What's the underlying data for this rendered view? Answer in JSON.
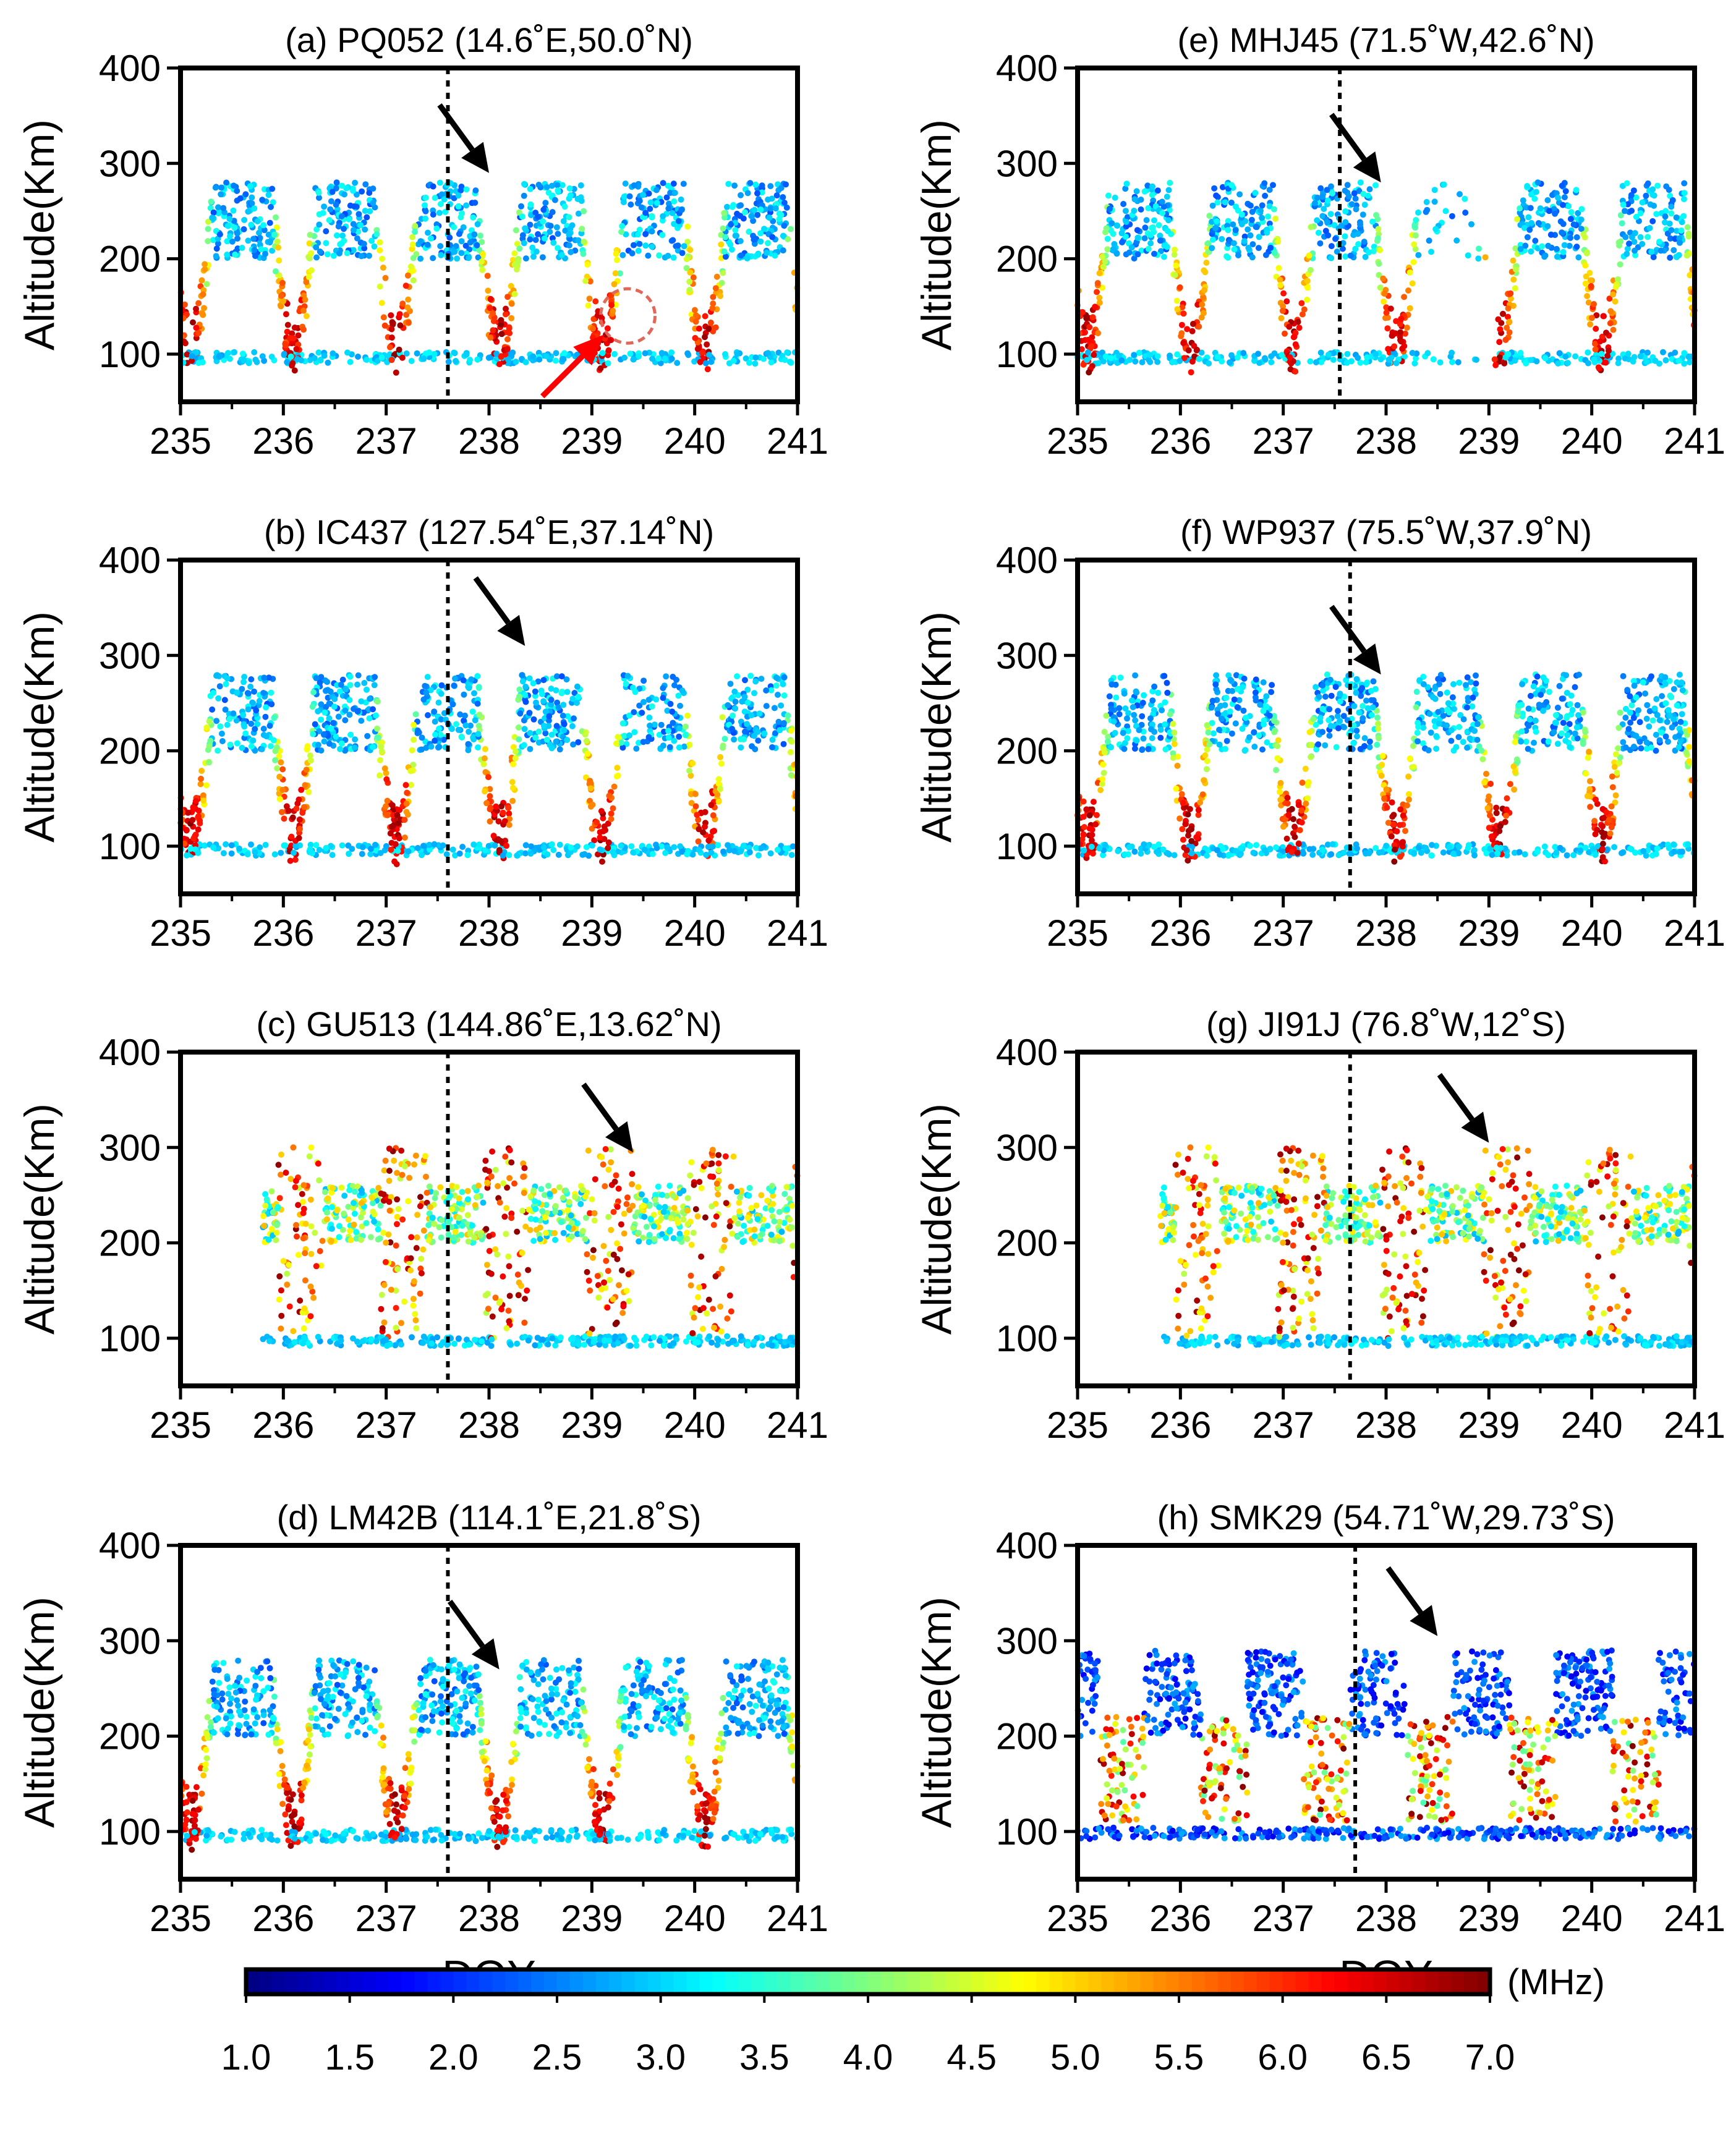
{
  "figure": {
    "xlabel": "DOY",
    "ylabel": "Altitude(Km)",
    "colorbar": {
      "unit": "(MHz)",
      "min": 1.0,
      "max": 7.0,
      "ticks": [
        "1.0",
        "1.5",
        "2.0",
        "2.5",
        "3.0",
        "3.5",
        "4.0",
        "4.5",
        "5.0",
        "5.5",
        "6.0",
        "6.5",
        "7.0"
      ]
    }
  },
  "chart_data": [
    {
      "type": "scatter",
      "panel": "a",
      "title": "(a) PQ052 (14.6˚E,50.0˚N)",
      "xlim": [
        235,
        241
      ],
      "ylim": [
        50,
        400
      ],
      "xticks": [
        "235",
        "236",
        "237",
        "238",
        "239",
        "240",
        "241"
      ],
      "yticks": [
        "100",
        "200",
        "300",
        "400"
      ],
      "ylabel": "Altitude(Km)",
      "event_doy": 237.6,
      "arrow": {
        "doy": 238.0,
        "alt": 290,
        "color": "#000000"
      },
      "extra_arrow": {
        "doy": 239.3,
        "alt": 140,
        "color": "#ff0000"
      },
      "circle": {
        "doy": 239.35,
        "alt": 140
      },
      "variant": "day-night",
      "day_gap": []
    },
    {
      "type": "scatter",
      "panel": "b",
      "title": "(b) IC437 (127.54˚E,37.14˚N)",
      "xlim": [
        235,
        241
      ],
      "ylim": [
        50,
        400
      ],
      "xticks": [
        "235",
        "236",
        "237",
        "238",
        "239",
        "240",
        "241"
      ],
      "yticks": [
        "100",
        "200",
        "300",
        "400"
      ],
      "ylabel": "Altitude(Km)",
      "event_doy": 237.6,
      "arrow": {
        "doy": 238.35,
        "alt": 310,
        "color": "#000000"
      },
      "variant": "day-night",
      "day_gap": []
    },
    {
      "type": "scatter",
      "panel": "c",
      "title": "(c) GU513 (144.86˚E,13.62˚N)",
      "xlim": [
        235,
        241
      ],
      "ylim": [
        50,
        400
      ],
      "xticks": [
        "235",
        "236",
        "237",
        "238",
        "239",
        "240",
        "241"
      ],
      "yticks": [
        "100",
        "200",
        "300",
        "400"
      ],
      "ylabel": "Altitude(Km)",
      "event_doy": 237.6,
      "arrow": {
        "doy": 239.4,
        "alt": 295,
        "color": "#000000"
      },
      "variant": "low-lat",
      "day_gap": []
    },
    {
      "type": "scatter",
      "panel": "d",
      "title": "(d) LM42B (114.1˚E,21.8˚S)",
      "xlim": [
        235,
        241
      ],
      "ylim": [
        50,
        400
      ],
      "xticks": [
        "235",
        "236",
        "237",
        "238",
        "239",
        "240",
        "241"
      ],
      "yticks": [
        "100",
        "200",
        "300",
        "400"
      ],
      "ylabel": "Altitude(Km)",
      "xlabel": "DOY",
      "event_doy": 237.6,
      "arrow": {
        "doy": 238.1,
        "alt": 270,
        "color": "#000000"
      },
      "variant": "day-night",
      "day_gap": []
    },
    {
      "type": "scatter",
      "panel": "e",
      "title": "(e) MHJ45 (71.5˚W,42.6˚N)",
      "xlim": [
        235,
        241
      ],
      "ylim": [
        50,
        400
      ],
      "xticks": [
        "235",
        "236",
        "237",
        "238",
        "239",
        "240",
        "241"
      ],
      "yticks": [
        "100",
        "200",
        "300",
        "400"
      ],
      "ylabel": "Altitude(Km)",
      "event_doy": 237.55,
      "arrow": {
        "doy": 237.95,
        "alt": 280,
        "color": "#000000"
      },
      "variant": "day-night",
      "day_gap": [
        238.3,
        239.1
      ]
    },
    {
      "type": "scatter",
      "panel": "f",
      "title": "(f) WP937 (75.5˚W,37.9˚N)",
      "xlim": [
        235,
        241
      ],
      "ylim": [
        50,
        400
      ],
      "xticks": [
        "235",
        "236",
        "237",
        "238",
        "239",
        "240",
        "241"
      ],
      "yticks": [
        "100",
        "200",
        "300",
        "400"
      ],
      "ylabel": "Altitude(Km)",
      "event_doy": 237.65,
      "arrow": {
        "doy": 237.95,
        "alt": 280,
        "color": "#000000"
      },
      "variant": "day-night",
      "day_gap": []
    },
    {
      "type": "scatter",
      "panel": "g",
      "title": "(g) JI91J (76.8˚W,12˚S)",
      "xlim": [
        235,
        241
      ],
      "ylim": [
        50,
        400
      ],
      "xticks": [
        "235",
        "236",
        "237",
        "238",
        "239",
        "240",
        "241"
      ],
      "yticks": [
        "100",
        "200",
        "300",
        "400"
      ],
      "ylabel": "Altitude(Km)",
      "event_doy": 237.65,
      "arrow": {
        "doy": 239.0,
        "alt": 305,
        "color": "#000000"
      },
      "variant": "low-lat",
      "day_gap": []
    },
    {
      "type": "scatter",
      "panel": "h",
      "title": "(h) SMK29 (54.71˚W,29.73˚S)",
      "xlim": [
        235,
        241
      ],
      "ylim": [
        50,
        400
      ],
      "xticks": [
        "235",
        "236",
        "237",
        "238",
        "239",
        "240",
        "241"
      ],
      "yticks": [
        "100",
        "200",
        "300",
        "400"
      ],
      "ylabel": "Altitude(Km)",
      "xlabel": "DOY",
      "event_doy": 237.7,
      "arrow": {
        "doy": 238.5,
        "alt": 305,
        "color": "#000000"
      },
      "variant": "south",
      "day_gap": []
    }
  ]
}
